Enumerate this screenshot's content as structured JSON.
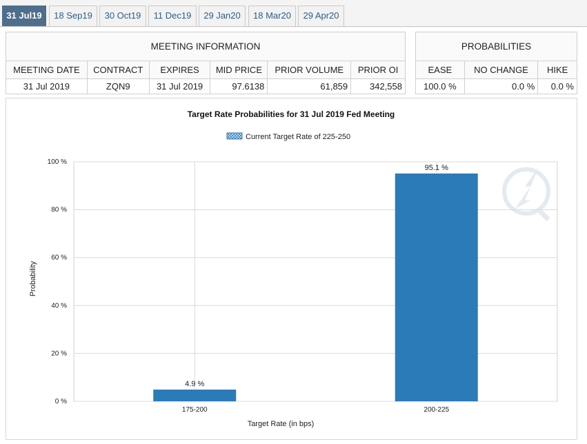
{
  "tabs": [
    "31 Jul19",
    "18 Sep19",
    "30 Oct19",
    "11 Dec19",
    "29 Jan20",
    "18 Mar20",
    "29 Apr20"
  ],
  "meeting_info": {
    "title": "MEETING INFORMATION",
    "headers": [
      "MEETING DATE",
      "CONTRACT",
      "EXPIRES",
      "MID PRICE",
      "PRIOR VOLUME",
      "PRIOR OI"
    ],
    "row": [
      "31 Jul 2019",
      "ZQN9",
      "31 Jul 2019",
      "97.6138",
      "61,859",
      "342,558"
    ]
  },
  "probabilities": {
    "title": "PROBABILITIES",
    "headers": [
      "EASE",
      "NO CHANGE",
      "HIKE"
    ],
    "row": [
      "100.0 %",
      "0.0 %",
      "0.0 %"
    ]
  },
  "colors": {
    "accent": "#4e6e8c",
    "bar": "#2b7bb9",
    "tab_text": "#2b5d8a"
  },
  "chart_data": {
    "type": "bar",
    "title": "Target Rate Probabilities for 31 Jul 2019 Fed Meeting",
    "legend": "Current Target Rate of 225-250",
    "legend_position": "top",
    "categories": [
      "175-200",
      "200-225"
    ],
    "values": [
      4.9,
      95.1
    ],
    "data_labels": [
      "4.9 %",
      "95.1 %"
    ],
    "xlabel": "Target Rate (in bps)",
    "ylabel": "Probability",
    "ylim": [
      0,
      100
    ],
    "yticks": [
      0,
      20,
      40,
      60,
      80,
      100
    ],
    "ytick_labels": [
      "0 %",
      "20 %",
      "40 %",
      "60 %",
      "80 %",
      "100 %"
    ],
    "grid": true
  }
}
